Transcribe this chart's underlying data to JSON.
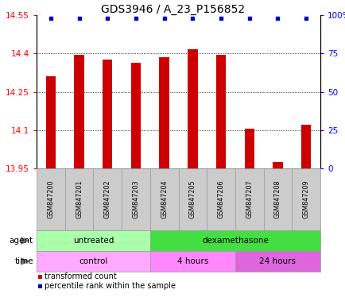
{
  "title": "GDS3946 / A_23_P156852",
  "samples": [
    "GSM847200",
    "GSM847201",
    "GSM847202",
    "GSM847203",
    "GSM847204",
    "GSM847205",
    "GSM847206",
    "GSM847207",
    "GSM847208",
    "GSM847209"
  ],
  "bar_values": [
    14.31,
    14.395,
    14.375,
    14.365,
    14.385,
    14.415,
    14.395,
    14.105,
    13.975,
    14.12
  ],
  "percentile_y_left": [
    14.538,
    14.538,
    14.538,
    14.538,
    14.538,
    14.538,
    14.538,
    14.538,
    14.538,
    14.538
  ],
  "ylim_left": [
    13.95,
    14.55
  ],
  "ylim_right": [
    0,
    100
  ],
  "yticks_left": [
    13.95,
    14.1,
    14.25,
    14.4,
    14.55
  ],
  "yticks_right": [
    0,
    25,
    50,
    75,
    100
  ],
  "ytick_labels_left": [
    "13.95",
    "14.1",
    "14.25",
    "14.4",
    "14.55"
  ],
  "ytick_labels_right": [
    "0",
    "25",
    "50",
    "75",
    "100%"
  ],
  "bar_color": "#cc0000",
  "dot_color": "#0000cc",
  "bar_bottom": 13.95,
  "grid_lines": [
    14.1,
    14.25,
    14.4
  ],
  "agent_groups": [
    {
      "label": "untreated",
      "start": 0,
      "end": 4,
      "color": "#aaffaa"
    },
    {
      "label": "dexamethasone",
      "start": 4,
      "end": 10,
      "color": "#44dd44"
    }
  ],
  "time_groups": [
    {
      "label": "control",
      "start": 0,
      "end": 4,
      "color": "#ffaaff"
    },
    {
      "label": "4 hours",
      "start": 4,
      "end": 7,
      "color": "#ff88ff"
    },
    {
      "label": "24 hours",
      "start": 7,
      "end": 10,
      "color": "#dd66dd"
    }
  ],
  "legend_items": [
    {
      "label": "transformed count",
      "color": "#cc0000"
    },
    {
      "label": "percentile rank within the sample",
      "color": "#0000cc"
    }
  ],
  "title_fontsize": 10,
  "tick_fontsize": 7.5,
  "sample_fontsize": 5.8,
  "group_fontsize": 7.5,
  "legend_fontsize": 7,
  "bg_color": "#cccccc"
}
